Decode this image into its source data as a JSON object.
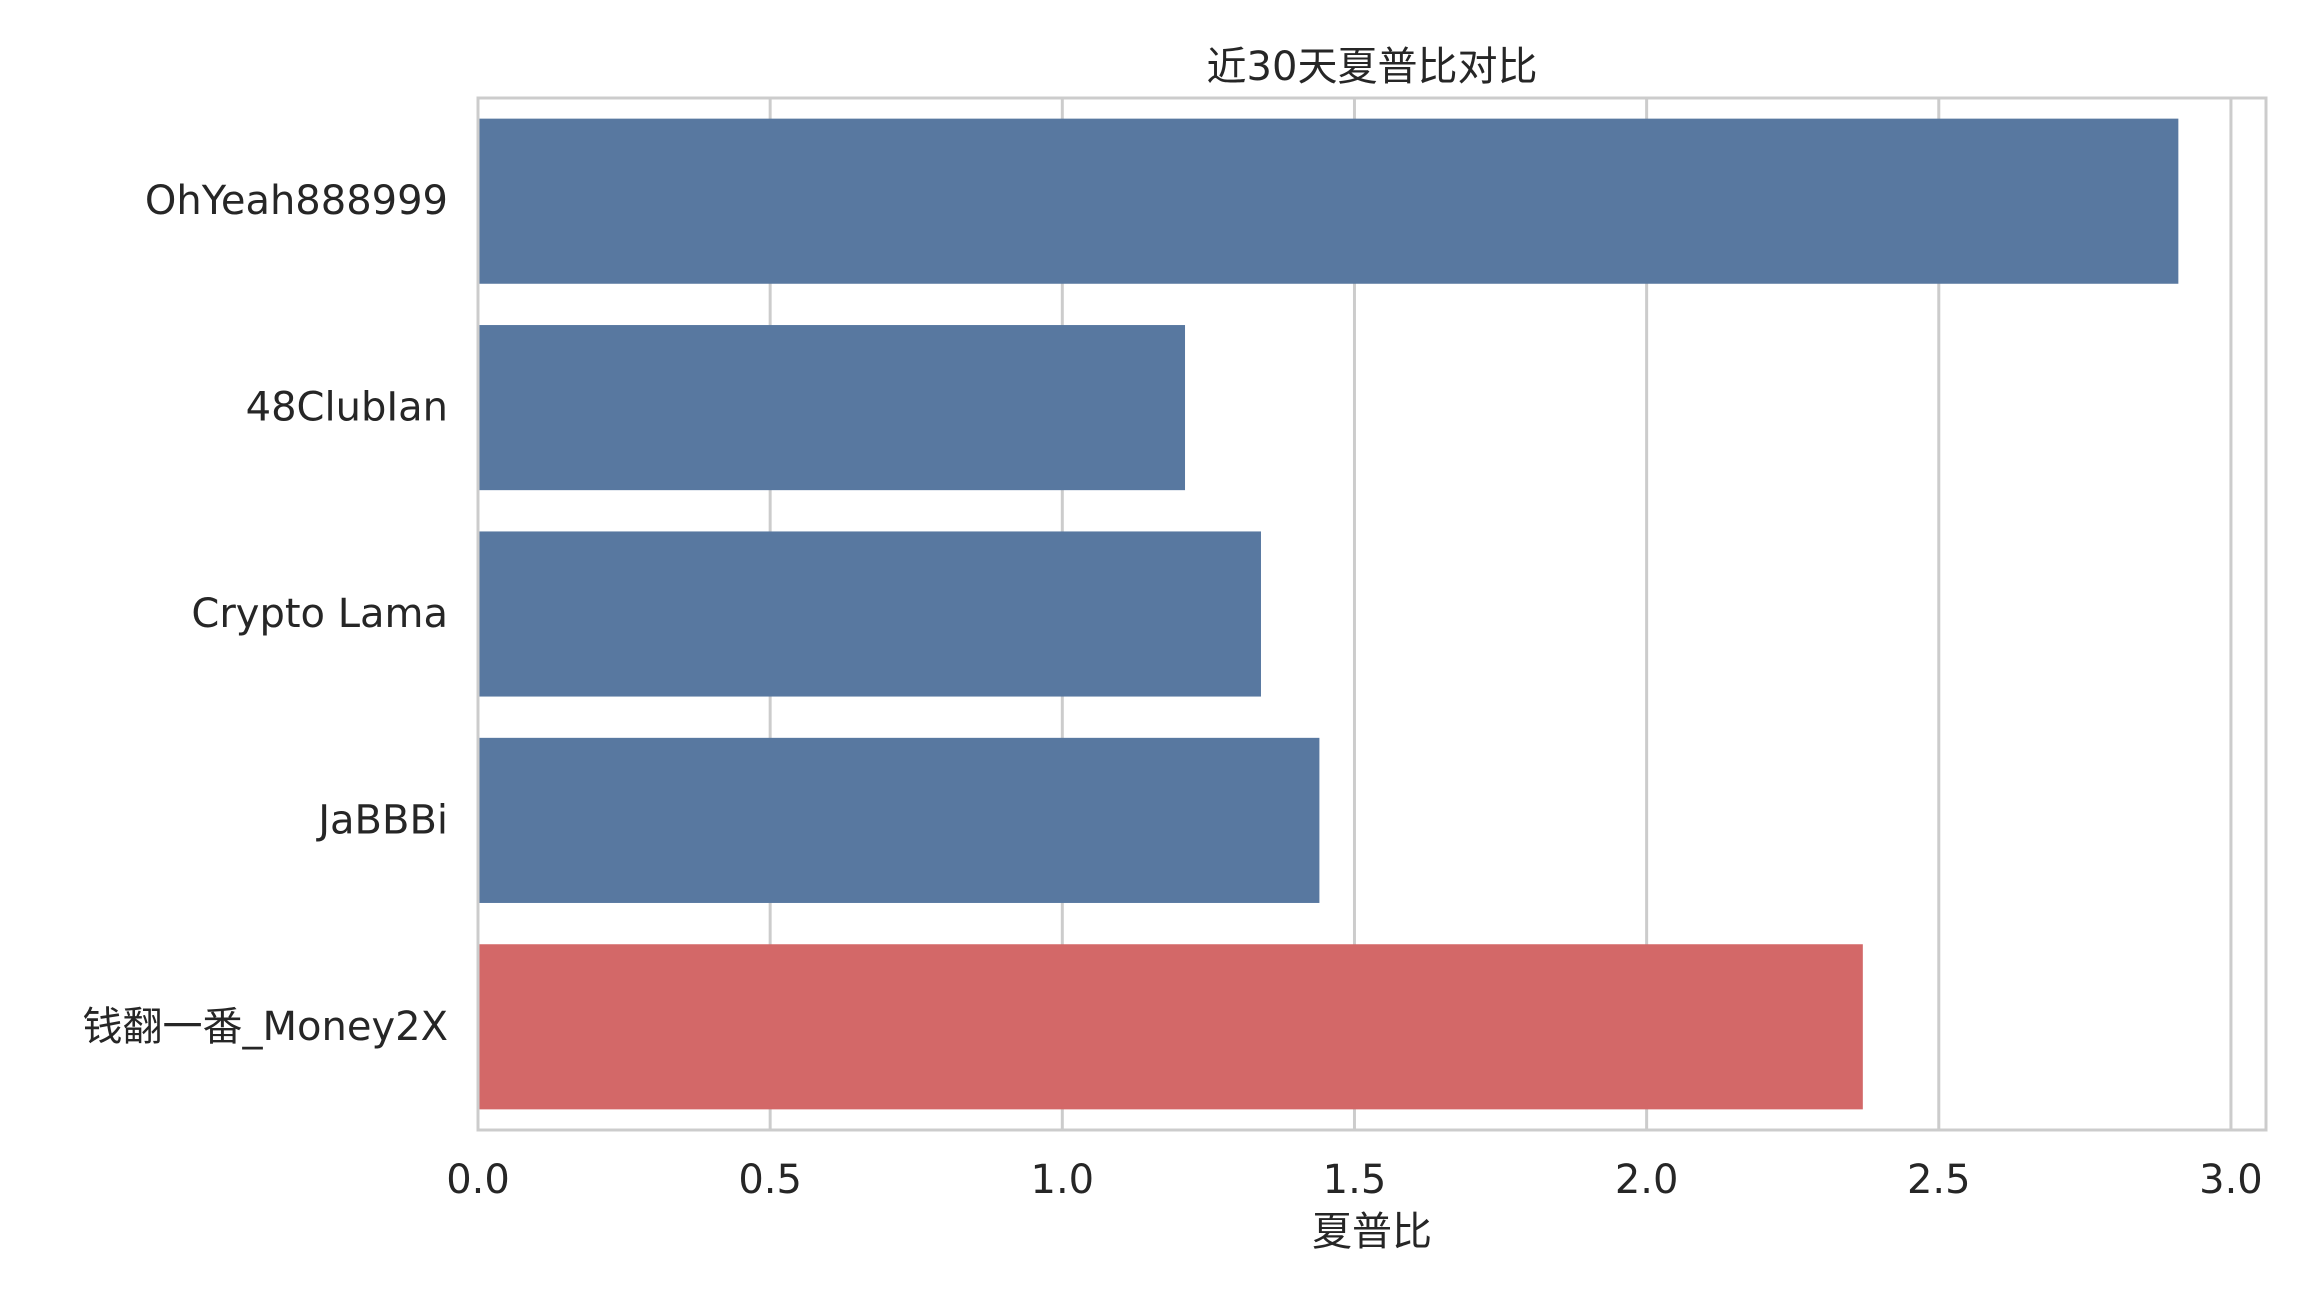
{
  "chart_data": {
    "type": "bar",
    "orientation": "horizontal",
    "title": "近30天夏普比对比",
    "xlabel": "夏普比",
    "ylabel": "",
    "categories": [
      "OhYeah888999",
      "48ClubIan",
      "Crypto Lama",
      "JaBBBi",
      "钱翻一番_Money2X"
    ],
    "values": [
      2.91,
      1.21,
      1.34,
      1.44,
      2.37
    ],
    "bar_colors": [
      "#5878a0",
      "#5878a0",
      "#5878a0",
      "#5878a0",
      "#d36868"
    ],
    "xlim": [
      0,
      3.06
    ],
    "xticks": [
      0.0,
      0.5,
      1.0,
      1.5,
      2.0,
      2.5,
      3.0
    ],
    "xtick_labels": [
      "0.0",
      "0.5",
      "1.0",
      "1.5",
      "2.0",
      "2.5",
      "3.0"
    ],
    "grid": "vertical",
    "legend": "none"
  }
}
